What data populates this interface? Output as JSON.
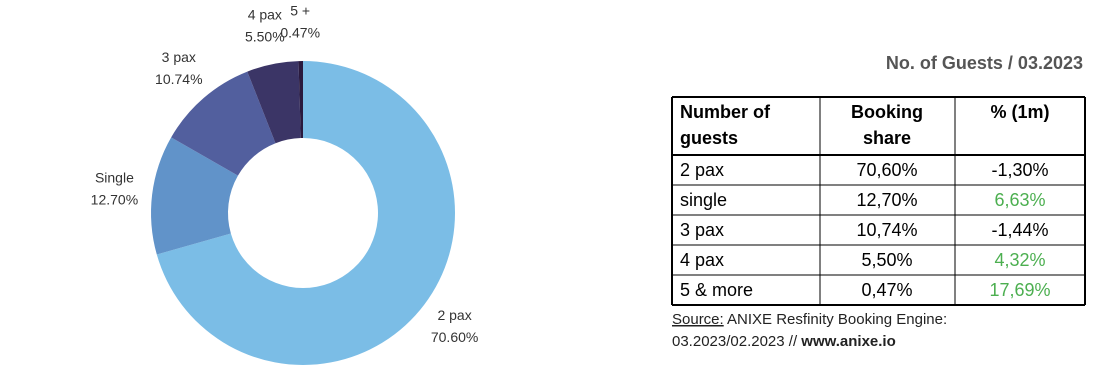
{
  "chart_data": {
    "type": "pie",
    "donut": true,
    "categories": [
      "2 pax",
      "Single",
      "3 pax",
      "4 pax",
      "5 +"
    ],
    "values": [
      70.6,
      12.7,
      10.74,
      5.5,
      0.47
    ],
    "value_labels": [
      "70.60%",
      "12.70%",
      "10.74%",
      "5.50%",
      "0.47%"
    ],
    "colors": [
      "#7bbde6",
      "#6193c9",
      "#525f9e",
      "#3b3566",
      "#2a1a3e"
    ]
  },
  "table": {
    "title": "No. of Guests / 03.2023",
    "header": [
      [
        "Number of",
        "guests"
      ],
      [
        "Booking",
        "share"
      ],
      [
        "% (1m)"
      ]
    ],
    "rows": [
      {
        "cells": [
          "2 pax",
          "70,60%",
          "-1,30%"
        ],
        "change_color": "#000000"
      },
      {
        "cells": [
          "single",
          "12,70%",
          "6,63%"
        ],
        "change_color": "#4caf50"
      },
      {
        "cells": [
          "3 pax",
          "10,74%",
          "-1,44%"
        ],
        "change_color": "#000000"
      },
      {
        "cells": [
          "4 pax",
          "5,50%",
          "4,32%"
        ],
        "change_color": "#4caf50"
      },
      {
        "cells": [
          "5 & more",
          "0,47%",
          "17,69%"
        ],
        "change_color": "#4caf50"
      }
    ]
  },
  "source": {
    "label": "Source:",
    "text": " ANIXE Resfinity Booking Engine:",
    "period": "03.2023/02.2023 // ",
    "url": "www.anixe.io"
  }
}
